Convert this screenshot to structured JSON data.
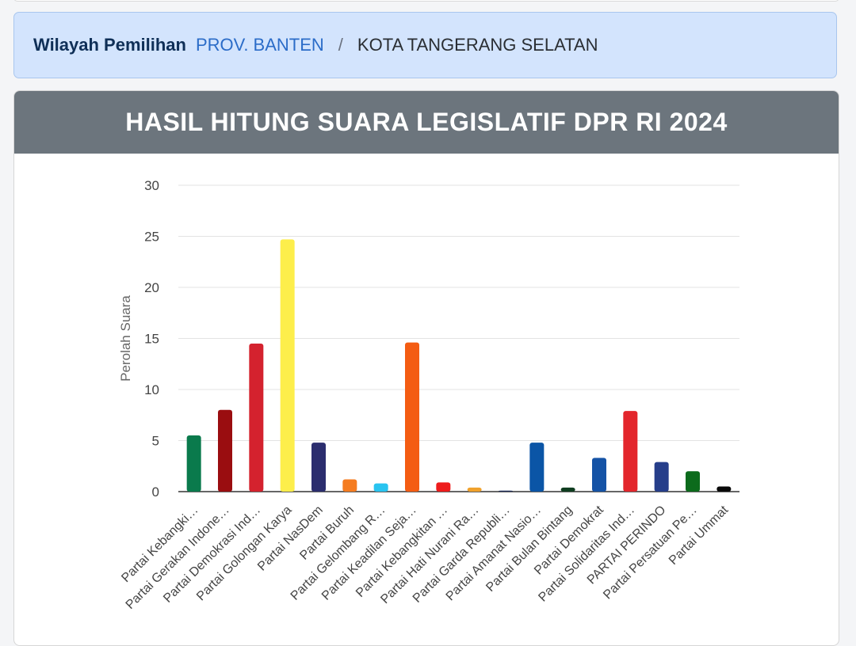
{
  "breadcrumb": {
    "label": "Wilayah Pemilihan",
    "province": "PROV. BANTEN",
    "separator": "/",
    "city": "KOTA TANGERANG SELATAN"
  },
  "card": {
    "title": "HASIL HITUNG SUARA LEGISLATIF DPR RI 2024"
  },
  "chart_data": {
    "type": "bar",
    "ylabel": "Perolah Suara",
    "ylim": [
      0,
      30
    ],
    "yticks": [
      0,
      5,
      10,
      15,
      20,
      25,
      30
    ],
    "grid": true,
    "categories": [
      "Partai Kebangki…",
      "Partai Gerakan Indone…",
      "Partai Demokrasi Ind…",
      "Partai Golongan Karya",
      "Partai NasDem",
      "Partai Buruh",
      "Partai Gelombang R…",
      "Partai Keadilan Seja…",
      "Partai Kebangkitan …",
      "Partai Hati Nurani Ra…",
      "Partai Garda Republi…",
      "Partai Amanat Nasio…",
      "Partai Bulan Bintang",
      "Partai Demokrat",
      "Partai Solidaritas Ind…",
      "PARTAI PERINDO",
      "Partai Persatuan Pe…",
      "Partai Ummat"
    ],
    "values": [
      5.5,
      8.0,
      14.5,
      24.7,
      4.8,
      1.2,
      0.8,
      14.6,
      0.9,
      0.4,
      0.1,
      4.8,
      0.4,
      3.3,
      7.9,
      2.9,
      2.0,
      0.5
    ],
    "colors": [
      "#0a7a4c",
      "#9a0d10",
      "#d4222e",
      "#fdee4b",
      "#2b2d6e",
      "#f57c20",
      "#29c4f0",
      "#f45c12",
      "#ee1c1c",
      "#f0a12c",
      "#1c2a58",
      "#0b55a6",
      "#0f3d20",
      "#1553a6",
      "#e3262c",
      "#263e8a",
      "#0c6b1c",
      "#0a0a0a"
    ]
  }
}
